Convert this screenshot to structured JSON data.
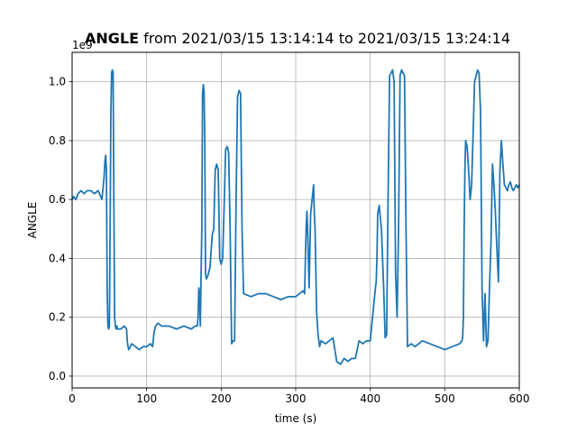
{
  "chart_data": {
    "type": "line",
    "title_bold": "ANGLE",
    "title_rest": " from 2021/03/15 13:14:14 to 2021/03/15 13:24:14",
    "xlabel": "time (s)",
    "ylabel": "ANGLE",
    "y_offset_text": "1e9",
    "xlim": [
      0,
      600
    ],
    "ylim": [
      -0.04,
      1.1
    ],
    "xticks": [
      0,
      100,
      200,
      300,
      400,
      500,
      600
    ],
    "yticks": [
      0.0,
      0.2,
      0.4,
      0.6,
      0.8,
      1.0
    ],
    "xtick_labels": [
      "0",
      "100",
      "200",
      "300",
      "400",
      "500",
      "600"
    ],
    "ytick_labels": [
      "0.0",
      "0.2",
      "0.4",
      "0.6",
      "0.8",
      "1.0"
    ],
    "grid": true,
    "series": [
      {
        "color": "#1f77b4",
        "x": [
          0,
          2,
          5,
          8,
          12,
          16,
          20,
          25,
          30,
          35,
          40,
          43,
          44,
          45,
          46,
          47,
          48,
          49,
          50,
          51,
          52,
          53,
          54,
          55,
          56,
          57,
          58,
          59,
          60,
          61,
          62,
          65,
          70,
          73,
          74,
          75,
          76,
          78,
          80,
          85,
          90,
          95,
          100,
          105,
          108,
          110,
          112,
          115,
          120,
          130,
          140,
          150,
          160,
          165,
          168,
          169,
          170,
          171,
          172,
          174,
          175,
          176,
          177,
          178,
          179,
          180,
          182,
          185,
          188,
          190,
          192,
          194,
          196,
          198,
          200,
          202,
          204,
          206,
          208,
          210,
          212,
          214,
          216,
          218,
          220,
          222,
          224,
          226,
          228,
          230,
          240,
          250,
          260,
          270,
          280,
          290,
          300,
          305,
          310,
          312,
          313,
          314,
          315,
          316,
          318,
          320,
          322,
          324,
          325,
          326,
          328,
          330,
          332,
          334,
          340,
          345,
          350,
          355,
          360,
          365,
          370,
          375,
          380,
          385,
          390,
          395,
          400,
          405,
          407,
          408,
          409,
          410,
          412,
          415,
          418,
          420,
          422,
          424,
          426,
          428,
          430,
          432,
          434,
          436,
          438,
          440,
          442,
          444,
          446,
          448,
          450,
          455,
          460,
          470,
          480,
          490,
          500,
          510,
          520,
          523,
          524,
          525,
          526,
          527,
          528,
          530,
          532,
          534,
          536,
          538,
          540,
          542,
          544,
          546,
          548,
          550,
          552,
          554,
          556,
          558,
          560,
          562,
          564,
          566,
          568,
          570,
          572,
          574,
          576,
          578,
          580,
          582,
          584,
          586,
          588,
          590,
          592,
          594,
          596,
          598,
          600
        ],
        "y": [
          0.6,
          0.61,
          0.6,
          0.62,
          0.63,
          0.62,
          0.63,
          0.63,
          0.62,
          0.63,
          0.6,
          0.68,
          0.73,
          0.75,
          0.7,
          0.3,
          0.17,
          0.16,
          0.17,
          0.5,
          0.9,
          1.03,
          1.04,
          1.03,
          0.6,
          0.2,
          0.17,
          0.16,
          0.17,
          0.16,
          0.16,
          0.16,
          0.17,
          0.16,
          0.12,
          0.1,
          0.09,
          0.1,
          0.11,
          0.1,
          0.09,
          0.1,
          0.1,
          0.11,
          0.1,
          0.15,
          0.17,
          0.18,
          0.17,
          0.17,
          0.16,
          0.17,
          0.16,
          0.17,
          0.17,
          0.2,
          0.3,
          0.28,
          0.17,
          0.5,
          0.96,
          0.99,
          0.97,
          0.8,
          0.35,
          0.33,
          0.34,
          0.37,
          0.48,
          0.5,
          0.7,
          0.72,
          0.7,
          0.4,
          0.38,
          0.4,
          0.58,
          0.77,
          0.78,
          0.76,
          0.5,
          0.11,
          0.12,
          0.12,
          0.6,
          0.95,
          0.97,
          0.96,
          0.5,
          0.28,
          0.27,
          0.28,
          0.28,
          0.27,
          0.26,
          0.27,
          0.27,
          0.28,
          0.29,
          0.28,
          0.4,
          0.5,
          0.56,
          0.5,
          0.3,
          0.55,
          0.6,
          0.65,
          0.55,
          0.5,
          0.22,
          0.14,
          0.1,
          0.12,
          0.11,
          0.12,
          0.13,
          0.05,
          0.04,
          0.06,
          0.05,
          0.06,
          0.06,
          0.12,
          0.11,
          0.12,
          0.12,
          0.25,
          0.3,
          0.32,
          0.4,
          0.55,
          0.58,
          0.5,
          0.3,
          0.13,
          0.14,
          0.62,
          1.02,
          1.03,
          1.04,
          1.0,
          0.35,
          0.2,
          0.5,
          1.02,
          1.04,
          1.03,
          1.02,
          0.5,
          0.1,
          0.11,
          0.1,
          0.12,
          0.11,
          0.1,
          0.09,
          0.1,
          0.11,
          0.12,
          0.13,
          0.2,
          0.5,
          0.7,
          0.8,
          0.78,
          0.7,
          0.6,
          0.65,
          0.82,
          1.0,
          1.02,
          1.04,
          1.03,
          0.9,
          0.3,
          0.12,
          0.28,
          0.1,
          0.12,
          0.3,
          0.45,
          0.72,
          0.65,
          0.55,
          0.43,
          0.32,
          0.7,
          0.8,
          0.72,
          0.65,
          0.64,
          0.63,
          0.65,
          0.66,
          0.64,
          0.63,
          0.64,
          0.65,
          0.64,
          0.65
        ]
      }
    ]
  }
}
